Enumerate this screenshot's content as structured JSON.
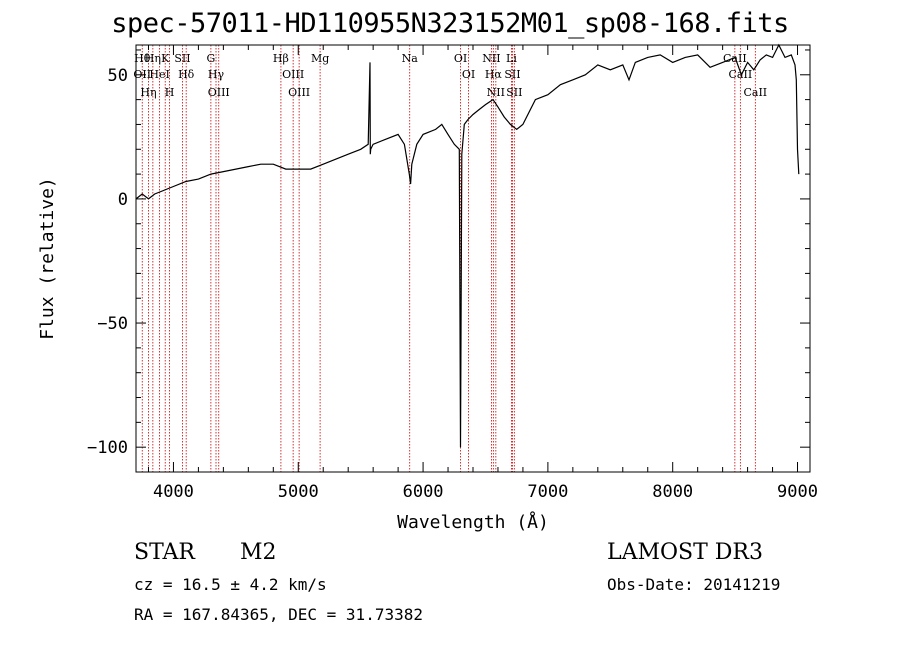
{
  "chart_data": {
    "type": "line",
    "title": "spec-57011-HD110955N323152M01_sp08-168.fits",
    "xlabel": "Wavelength (Å)",
    "ylabel": "Flux (relative)",
    "xlim": [
      3700,
      9100
    ],
    "ylim": [
      -110,
      62
    ],
    "xticks": [
      4000,
      5000,
      6000,
      7000,
      8000,
      9000
    ],
    "yticks": [
      -100,
      -50,
      0,
      50
    ],
    "ytick_labels": [
      "−100",
      "−50",
      "0",
      "50"
    ],
    "series": [
      {
        "name": "spectrum",
        "x": [
          3700,
          3750,
          3800,
          3850,
          3900,
          3950,
          4000,
          4100,
          4200,
          4300,
          4400,
          4500,
          4600,
          4700,
          4800,
          4900,
          5000,
          5100,
          5200,
          5300,
          5400,
          5500,
          5560,
          5575,
          5577,
          5580,
          5600,
          5700,
          5800,
          5850,
          5890,
          5900,
          5910,
          5950,
          6000,
          6100,
          6150,
          6200,
          6250,
          6290,
          6300,
          6310,
          6330,
          6360,
          6400,
          6450,
          6500,
          6560,
          6600,
          6650,
          6700,
          6750,
          6800,
          6900,
          7000,
          7100,
          7200,
          7300,
          7400,
          7500,
          7600,
          7650,
          7700,
          7800,
          7900,
          8000,
          8100,
          8200,
          8300,
          8400,
          8500,
          8550,
          8600,
          8650,
          8700,
          8750,
          8800,
          8850,
          8900,
          8950,
          8980,
          8990,
          9000,
          9010
        ],
        "y": [
          0,
          2,
          0,
          2,
          3,
          4,
          5,
          7,
          8,
          10,
          11,
          12,
          13,
          14,
          14,
          12,
          12,
          12,
          14,
          16,
          18,
          20,
          22,
          55,
          18,
          20,
          22,
          24,
          26,
          22,
          10,
          6,
          14,
          22,
          26,
          28,
          30,
          26,
          22,
          20,
          -100,
          18,
          30,
          32,
          34,
          36,
          38,
          40,
          37,
          33,
          30,
          28,
          30,
          40,
          42,
          46,
          48,
          50,
          54,
          52,
          54,
          48,
          55,
          57,
          58,
          55,
          57,
          58,
          53,
          55,
          57,
          50,
          55,
          52,
          56,
          58,
          57,
          62,
          57,
          58,
          54,
          48,
          20,
          10
        ]
      }
    ],
    "lines": [
      {
        "x": 3750,
        "labels": [
          "Hθ",
          "OII"
        ]
      },
      {
        "x": 3800,
        "labels": [
          "Hη"
        ]
      },
      {
        "x": 3835,
        "labels": [
          "Hη"
        ]
      },
      {
        "x": 3889,
        "labels": [
          "HeI"
        ]
      },
      {
        "x": 3934,
        "labels": [
          "K"
        ]
      },
      {
        "x": 3969,
        "labels": [
          "H"
        ]
      },
      {
        "x": 4072,
        "labels": [
          "SII"
        ]
      },
      {
        "x": 4102,
        "labels": [
          "Hδ"
        ]
      },
      {
        "x": 4300,
        "labels": [
          "G"
        ]
      },
      {
        "x": 4341,
        "labels": [
          "Hγ"
        ]
      },
      {
        "x": 4363,
        "labels": [
          "OIII"
        ]
      },
      {
        "x": 4861,
        "labels": [
          "Hβ"
        ]
      },
      {
        "x": 4959,
        "labels": [
          "OIII"
        ]
      },
      {
        "x": 5007,
        "labels": [
          "OIII"
        ]
      },
      {
        "x": 5175,
        "labels": [
          "Mg"
        ]
      },
      {
        "x": 5893,
        "labels": [
          "Na"
        ]
      },
      {
        "x": 6300,
        "labels": [
          "OI"
        ]
      },
      {
        "x": 6364,
        "labels": [
          "OI"
        ]
      },
      {
        "x": 6548,
        "labels": [
          "NII"
        ]
      },
      {
        "x": 6563,
        "labels": [
          "Hα"
        ]
      },
      {
        "x": 6583,
        "labels": [
          "NII"
        ]
      },
      {
        "x": 6708,
        "labels": [
          "Li"
        ]
      },
      {
        "x": 6716,
        "labels": [
          "SII"
        ]
      },
      {
        "x": 6731,
        "labels": [
          "SII"
        ]
      },
      {
        "x": 8498,
        "labels": [
          "CaII"
        ]
      },
      {
        "x": 8542,
        "labels": [
          "CaII"
        ]
      },
      {
        "x": 8662,
        "labels": [
          "CaII"
        ]
      }
    ]
  },
  "info": {
    "class": "STAR",
    "subclass": "M2",
    "survey": "LAMOST DR3",
    "cz": "cz = 16.5 ± 4.2 km/s",
    "obs_date": "Obs-Date: 20141219",
    "coords": "RA = 167.84365, DEC =  31.73382"
  },
  "colors": {
    "spectrum": "#000000",
    "line_marker": "#cc0000",
    "text": "#000000"
  }
}
